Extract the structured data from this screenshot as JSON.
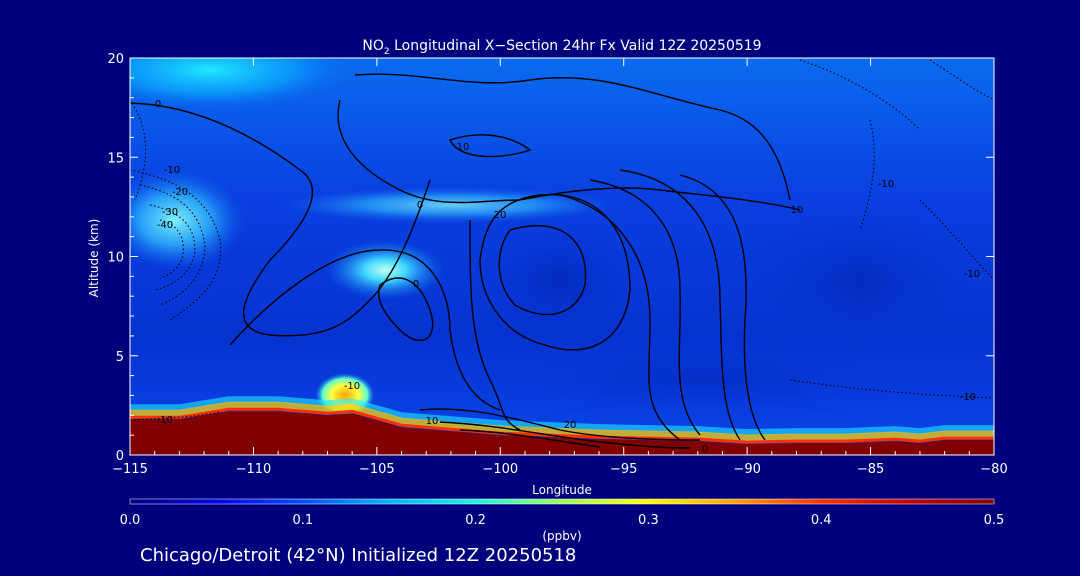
{
  "chart_data": {
    "type": "heatmap",
    "title": {
      "prefix": "NO",
      "sub": "2",
      "suffix": " Longitudinal X−Section 24hr  Fx Valid 12Z 20250519"
    },
    "xlabel": "Longitude",
    "ylabel": "Altitude (km)",
    "xlim": [
      -115,
      -80
    ],
    "ylim": [
      0,
      20
    ],
    "x_ticks": [
      -115,
      -110,
      -105,
      -100,
      -95,
      -90,
      -85,
      -80
    ],
    "x_tick_labels": [
      "−115",
      "−110",
      "−105",
      "−100",
      "−95",
      "−90",
      "−85",
      "−80"
    ],
    "y_ticks": [
      0,
      5,
      10,
      15,
      20
    ],
    "colorbar": {
      "label": "(ppbv)",
      "range": [
        0.0,
        0.5
      ],
      "ticks": [
        "0.0",
        "0.1",
        "0.2",
        "0.3",
        "0.4",
        "0.5"
      ],
      "colors": [
        "#00007d",
        "#0000e6",
        "#0050ff",
        "#00b4ff",
        "#20f0e0",
        "#a0ff60",
        "#ffff00",
        "#ffa000",
        "#ff3000",
        "#c00000",
        "#800000"
      ]
    },
    "terrain_km": [
      [
        -115,
        1.8
      ],
      [
        -113,
        1.8
      ],
      [
        -111,
        2.2
      ],
      [
        -109,
        2.2
      ],
      [
        -107,
        2.0
      ],
      [
        -106,
        2.1
      ],
      [
        -104,
        1.4
      ],
      [
        -102,
        1.2
      ],
      [
        -100,
        1.0
      ],
      [
        -98,
        0.9
      ],
      [
        -96,
        0.8
      ],
      [
        -94,
        0.75
      ],
      [
        -92,
        0.7
      ],
      [
        -90,
        0.55
      ],
      [
        -88,
        0.6
      ],
      [
        -86,
        0.6
      ],
      [
        -84,
        0.7
      ],
      [
        -83,
        0.6
      ],
      [
        -82,
        0.75
      ],
      [
        -80,
        0.75
      ]
    ],
    "contour_labels": [
      "0",
      "-10",
      "-20",
      "-30",
      "-40",
      "10",
      "0",
      "20",
      "0",
      "-10",
      "-10",
      "10",
      "20",
      "0",
      "-10",
      "-10",
      "-10",
      "10"
    ],
    "subtitle": "Chicago/Detroit (42°N) Initialized 12Z 20250518"
  }
}
